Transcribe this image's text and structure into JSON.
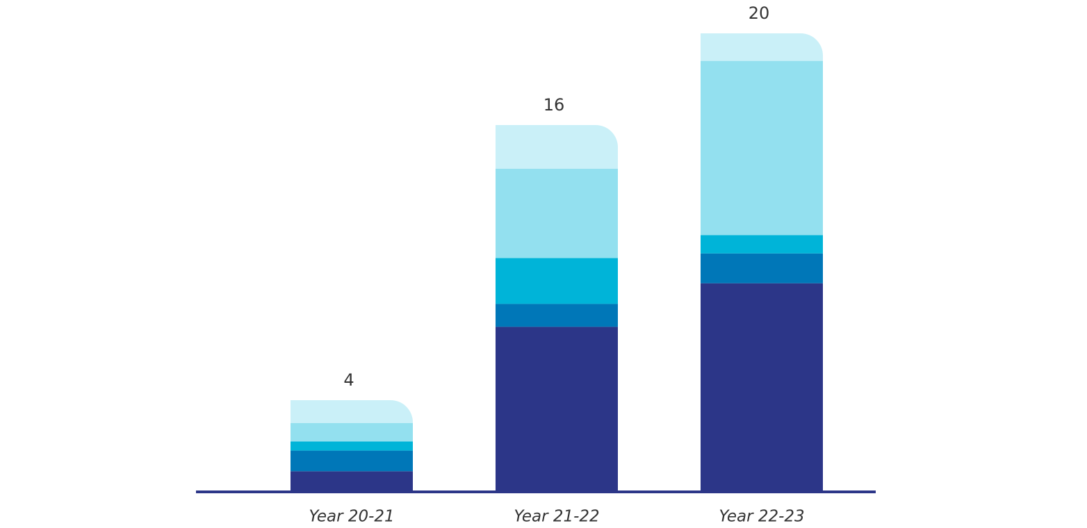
{
  "chart_data": {
    "type": "stacked_bar",
    "categories": [
      "Year 20-21",
      "Year 21-22",
      "Year 22-23"
    ],
    "totals": [
      4,
      16,
      20
    ],
    "series": [
      {
        "color": "#2c3688",
        "values": [
          0.9,
          7.2,
          9.1
        ]
      },
      {
        "color": "#0077b8",
        "values": [
          0.9,
          1.0,
          1.3
        ]
      },
      {
        "color": "#00b4d8",
        "values": [
          0.4,
          2.0,
          0.8
        ]
      },
      {
        "color": "#93e0ef",
        "values": [
          0.8,
          3.9,
          7.6
        ]
      },
      {
        "color": "#caf0f8",
        "values": [
          1.0,
          1.9,
          1.2
        ]
      }
    ]
  }
}
